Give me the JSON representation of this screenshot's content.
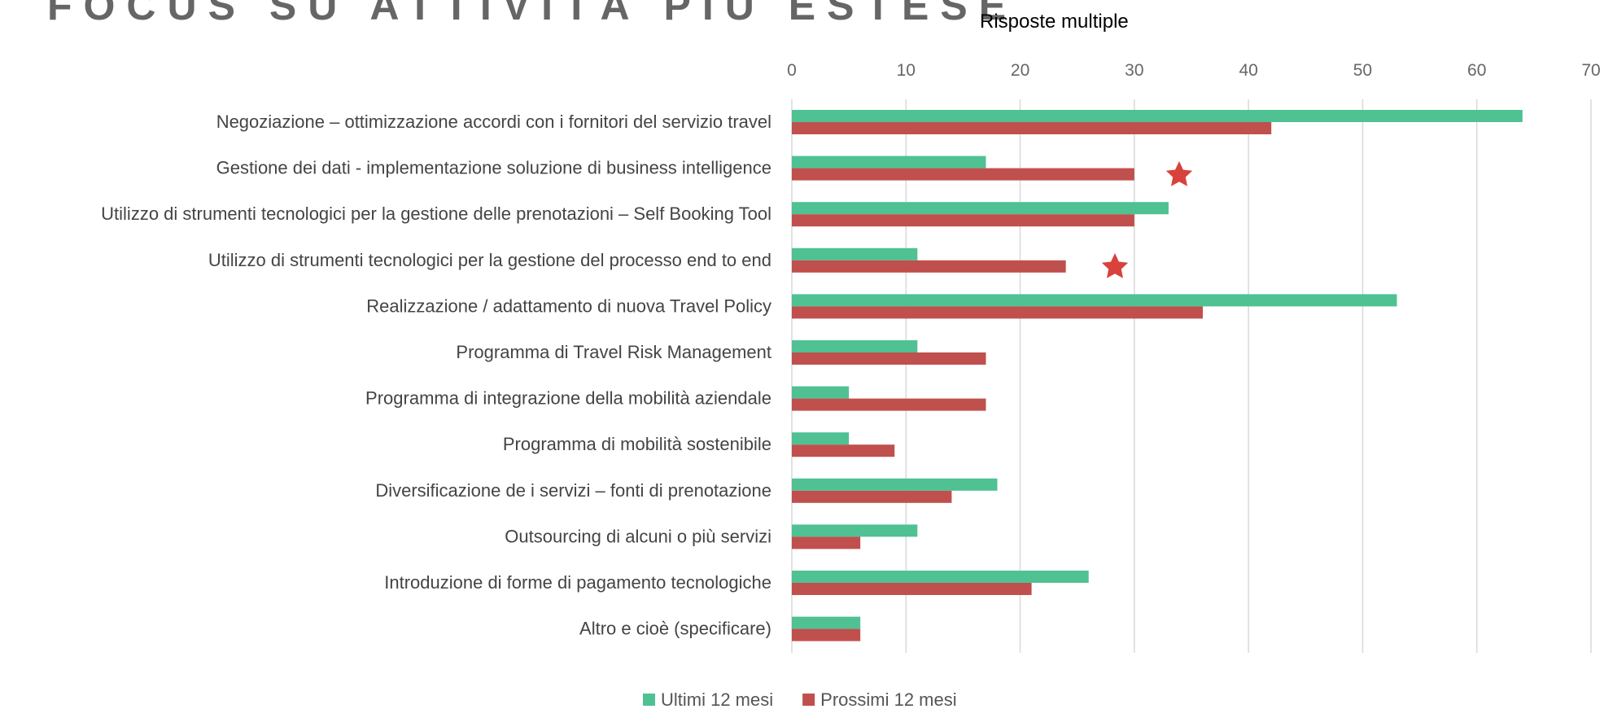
{
  "chart_data": {
    "type": "bar",
    "orientation": "horizontal",
    "title": "FOCUS SU ATTIVITÀ PIÙ ESTESE",
    "subtitle": "Risposte multiple",
    "categories": [
      "Negoziazione – ottimizzazione accordi con i fornitori del servizio travel",
      "Gestione dei dati - implementazione soluzione di business intelligence",
      "Utilizzo di strumenti tecnologici per la gestione delle prenotazioni – Self Booking Tool",
      "Utilizzo di strumenti tecnologici per la gestione del processo end to end",
      "Realizzazione / adattamento di nuova Travel Policy",
      "Programma di Travel Risk Management",
      "Programma di integrazione della mobilità aziendale",
      "Programma di mobilità sostenibile",
      "Diversificazione de i servizi – fonti di prenotazione",
      "Outsourcing di alcuni o più servizi",
      "Introduzione di forme di pagamento tecnologiche",
      "Altro e cioè (specificare)"
    ],
    "series": [
      {
        "name": "Ultimi 12 mesi",
        "color": "#4fc193",
        "values": [
          64,
          17,
          33,
          11,
          53,
          11,
          5,
          5,
          18,
          11,
          26,
          6
        ]
      },
      {
        "name": "Prossimi 12 mesi",
        "color": "#c0504d",
        "values": [
          42,
          30,
          30,
          24,
          36,
          17,
          17,
          9,
          14,
          6,
          21,
          6
        ]
      }
    ],
    "xlim": [
      0,
      70
    ],
    "xticks": [
      0,
      10,
      20,
      30,
      40,
      50,
      60,
      70
    ],
    "grid": true,
    "legend": "bottom"
  }
}
